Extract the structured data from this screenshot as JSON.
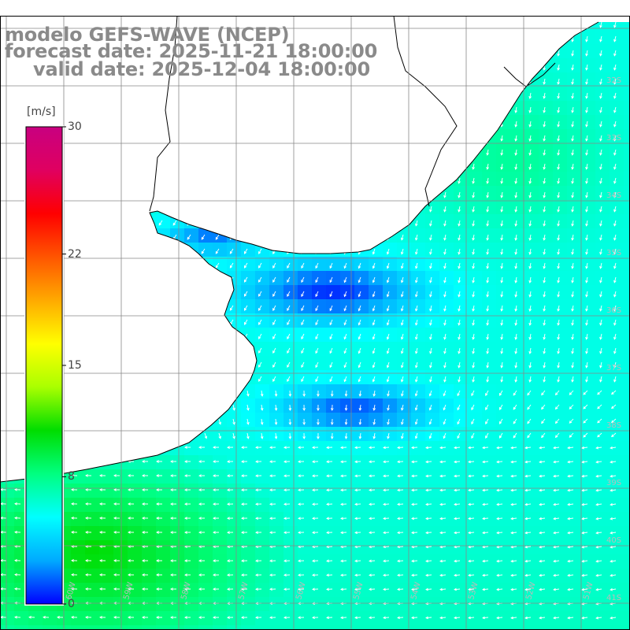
{
  "titles": {
    "line1": "modelo GEFS-WAVE (NCEP)",
    "line2": "forecast date: 2025-11-21 18:00:00",
    "line3": "valid date: 2025-12-04 18:00:00"
  },
  "colorbar": {
    "unit": "[m/s]",
    "ticks": [
      {
        "label": "30",
        "value": 30
      },
      {
        "label": "22",
        "value": 22
      },
      {
        "label": "15",
        "value": 15
      },
      {
        "label": "8",
        "value": 8
      },
      {
        "label": "0",
        "value": 0
      }
    ],
    "range": [
      0,
      30
    ],
    "colors": [
      "#0000ff",
      "#00aaff",
      "#00ffff",
      "#00ff80",
      "#00dd00",
      "#aaff00",
      "#ffff00",
      "#ffaa00",
      "#ff5500",
      "#ff0000",
      "#e00060",
      "#c80080"
    ]
  },
  "map": {
    "lat_labels": [
      "32S",
      "33S",
      "34S",
      "35S",
      "36S",
      "37S",
      "38S",
      "39S",
      "40S",
      "41S"
    ],
    "lon_labels": [
      "60W",
      "59W",
      "58W",
      "57W",
      "56W",
      "55W",
      "54W",
      "53W",
      "52W",
      "51W"
    ],
    "colors": {
      "land": "#ffffff",
      "coast": "#000000",
      "grid": "#888888",
      "arrow": "#ffffff"
    }
  }
}
